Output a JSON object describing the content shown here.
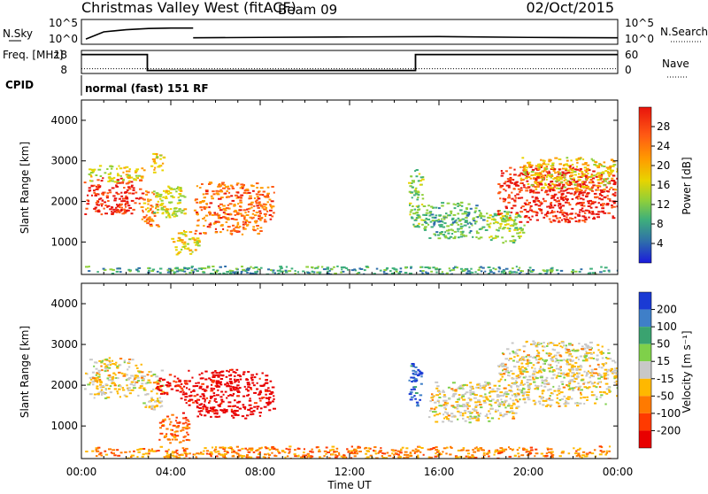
{
  "header": {
    "title": "Christmas Valley West (fitACF)",
    "beam": "Beam 09",
    "date": "02/Oct/2015"
  },
  "chart_data": [
    {
      "type": "line",
      "name": "noise panel",
      "left_label": "N.Sky",
      "right_label": "N.Search",
      "left_ticks": [
        "10^5",
        "10^0"
      ],
      "right_ticks": [
        "10^5",
        "10^0"
      ],
      "scale": "log",
      "series": [
        {
          "name": "N.Sky",
          "segments": [
            {
              "x": [
                0.2,
                1.0,
                2.0,
                3.0,
                4.0,
                4.6,
                5.0
              ],
              "y": [
                0.8,
                2.5,
                3.0,
                3.3,
                3.4,
                3.4,
                3.4
              ]
            },
            {
              "x": [
                5.0,
                8.0,
                12.0,
                16.0,
                20.0,
                24.0
              ],
              "y": [
                1.1,
                1.2,
                1.3,
                1.4,
                1.2,
                1.1
              ]
            }
          ]
        }
      ]
    },
    {
      "type": "line",
      "name": "frequency panel",
      "left_label": "Freq. [MHz]",
      "right_label": "Nave",
      "left_ticks": [
        "18",
        "8"
      ],
      "right_ticks": [
        "60",
        "0"
      ],
      "series": [
        {
          "name": "Freq.",
          "x": [
            0,
            2.95,
            2.95,
            14.95,
            14.95,
            24
          ],
          "y": [
            16.5,
            16.5,
            9.0,
            9.0,
            16.5,
            16.5
          ]
        },
        {
          "name": "Nave",
          "x": [
            0,
            24
          ],
          "y": [
            11.0,
            11.0
          ]
        }
      ]
    },
    {
      "type": "table",
      "name": "cpid",
      "label": "CPID",
      "value": "normal (fast) 151 RF"
    },
    {
      "type": "heatmap",
      "name": "power panel",
      "ylabel": "Slant Range [km]",
      "y_ticks": [
        1000,
        2000,
        3000,
        4000
      ],
      "ylim": [
        200,
        4500
      ],
      "xlim": [
        0,
        24
      ],
      "colorbar": {
        "label": "Power [dB]",
        "ticks": [
          "28",
          "24",
          "20",
          "16",
          "12",
          "8",
          "4"
        ],
        "colors": [
          "#e8140c",
          "#ff5a14",
          "#ff9a00",
          "#e8d400",
          "#8fcf3a",
          "#3fb07a",
          "#2f6faa",
          "#1a1adc"
        ]
      },
      "regions": [
        {
          "x": [
            0.1,
            2.7
          ],
          "y": [
            1700,
            2600
          ],
          "level": 0.92
        },
        {
          "x": [
            0.3,
            2.8
          ],
          "y": [
            2500,
            2900
          ],
          "level": 0.55
        },
        {
          "x": [
            2.6,
            3.4
          ],
          "y": [
            1400,
            2300
          ],
          "level": 0.75
        },
        {
          "x": [
            3.0,
            3.8
          ],
          "y": [
            2700,
            3200
          ],
          "level": 0.6
        },
        {
          "x": [
            3.2,
            4.6
          ],
          "y": [
            1600,
            2400
          ],
          "level": 0.5
        },
        {
          "x": [
            5.0,
            8.6
          ],
          "y": [
            1200,
            2500
          ],
          "level": 0.78
        },
        {
          "x": [
            4.0,
            5.2
          ],
          "y": [
            700,
            1300
          ],
          "level": 0.6
        },
        {
          "x": [
            14.6,
            15.3
          ],
          "y": [
            1300,
            2800
          ],
          "level": 0.4
        },
        {
          "x": [
            15.3,
            18.0
          ],
          "y": [
            1100,
            2000
          ],
          "level": 0.35
        },
        {
          "x": [
            18.0,
            19.8
          ],
          "y": [
            1000,
            1800
          ],
          "level": 0.45
        },
        {
          "x": [
            18.6,
            24.0
          ],
          "y": [
            1500,
            2900
          ],
          "level": 0.93
        },
        {
          "x": [
            19.5,
            24.0
          ],
          "y": [
            2300,
            3100
          ],
          "level": 0.6
        },
        {
          "x": [
            0.0,
            24.0
          ],
          "y": [
            200,
            420
          ],
          "level": 0.3
        }
      ]
    },
    {
      "type": "heatmap",
      "name": "velocity panel",
      "ylabel": "Slant Range [km]",
      "y_ticks": [
        1000,
        2000,
        3000,
        4000
      ],
      "ylim": [
        200,
        4500
      ],
      "xlim": [
        0,
        24
      ],
      "xlabel": "Time UT",
      "x_ticks": [
        "00:00",
        "04:00",
        "08:00",
        "12:00",
        "16:00",
        "20:00",
        "00:00"
      ],
      "colorbar": {
        "label": "Velocity [m s⁻¹]",
        "ticks": [
          "200",
          "100",
          "50",
          "15",
          "-15",
          "-50",
          "-100",
          "-200"
        ],
        "colors": [
          "#1a3ad4",
          "#3f7fc8",
          "#3aa370",
          "#7fd04a",
          "#c8c8c8",
          "#ffb800",
          "#ff7a00",
          "#ff3a00",
          "#e80000"
        ]
      },
      "regions": [
        {
          "x": [
            0.1,
            2.7
          ],
          "y": [
            1700,
            2700
          ],
          "level": 0.45
        },
        {
          "x": [
            2.6,
            3.6
          ],
          "y": [
            1400,
            2400
          ],
          "level": 0.45
        },
        {
          "x": [
            3.3,
            4.4
          ],
          "y": [
            1800,
            2300
          ],
          "level": 0.05
        },
        {
          "x": [
            4.4,
            8.6
          ],
          "y": [
            1200,
            2400
          ],
          "level": 0.0
        },
        {
          "x": [
            3.4,
            4.8
          ],
          "y": [
            600,
            1300
          ],
          "level": 0.25
        },
        {
          "x": [
            14.6,
            15.2
          ],
          "y": [
            1500,
            2600
          ],
          "level": 0.9
        },
        {
          "x": [
            15.5,
            19.5
          ],
          "y": [
            1100,
            2100
          ],
          "level": 0.45
        },
        {
          "x": [
            18.6,
            24.0
          ],
          "y": [
            1500,
            3100
          ],
          "level": 0.45
        },
        {
          "x": [
            0.0,
            24.0
          ],
          "y": [
            200,
            520
          ],
          "level": 0.3
        }
      ]
    }
  ]
}
